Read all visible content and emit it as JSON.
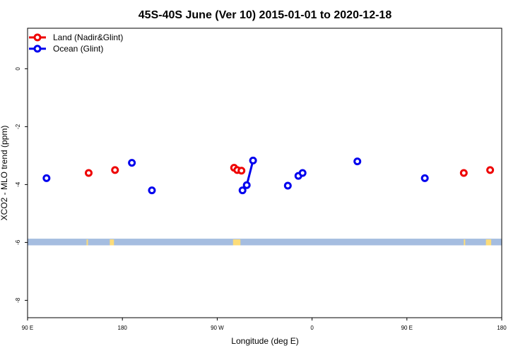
{
  "chart_data": {
    "type": "scatter",
    "title": "45S-40S June (Ver 10)   2015-01-01 to 2020-12-18",
    "xlabel": "Longitude (deg E)",
    "ylabel": "XCO2 - MLO trend (ppm)",
    "xlim": [
      90,
      540
    ],
    "ylim": [
      -8.6,
      1.4
    ],
    "x_ticks": [
      {
        "value": 90,
        "label": "90 E"
      },
      {
        "value": 180,
        "label": "180"
      },
      {
        "value": 270,
        "label": "90 W"
      },
      {
        "value": 360,
        "label": "0"
      },
      {
        "value": 450,
        "label": "90 E"
      },
      {
        "value": 540,
        "label": "180"
      }
    ],
    "y_ticks": [
      {
        "value": 0,
        "label": "0"
      },
      {
        "value": -2,
        "label": "-2"
      },
      {
        "value": -4,
        "label": "-4"
      },
      {
        "value": -6,
        "label": "-6"
      },
      {
        "value": -8,
        "label": "-8"
      }
    ],
    "legend_position": "top-left",
    "series": [
      {
        "name": "Land (Nadir&Glint)",
        "color": "#ee0000",
        "points": [
          {
            "x": 148,
            "y": -3.6
          },
          {
            "x": 173,
            "y": -3.5
          },
          {
            "x": 286,
            "y": -3.42
          },
          {
            "x": 289,
            "y": -3.5
          },
          {
            "x": 293,
            "y": -3.52
          },
          {
            "x": 504,
            "y": -3.6
          },
          {
            "x": 529,
            "y": -3.5
          }
        ]
      },
      {
        "name": "Ocean (Glint)",
        "color": "#0000ee",
        "points": [
          {
            "x": 108,
            "y": -3.78
          },
          {
            "x": 189,
            "y": -3.25
          },
          {
            "x": 208,
            "y": -4.2
          },
          {
            "x": 294,
            "y": -4.2
          },
          {
            "x": 298,
            "y": -4.02
          },
          {
            "x": 304,
            "y": -3.17
          },
          {
            "x": 337,
            "y": -4.04
          },
          {
            "x": 347,
            "y": -3.7
          },
          {
            "x": 351,
            "y": -3.6
          },
          {
            "x": 403,
            "y": -3.2
          },
          {
            "x": 467,
            "y": -3.78
          }
        ],
        "connected_segments": [
          [
            {
              "x": 298,
              "y": -4.02
            },
            {
              "x": 304,
              "y": -3.17
            }
          ]
        ]
      }
    ],
    "background_band": {
      "y_range": [
        -6.1,
        -5.87
      ],
      "ocean_color": "#a5bde0",
      "land_color": "#fcdc7a",
      "land_spans_x": [
        [
          146,
          147
        ],
        [
          168,
          172
        ],
        [
          285,
          292
        ],
        [
          504,
          505
        ],
        [
          525,
          530
        ]
      ]
    }
  }
}
